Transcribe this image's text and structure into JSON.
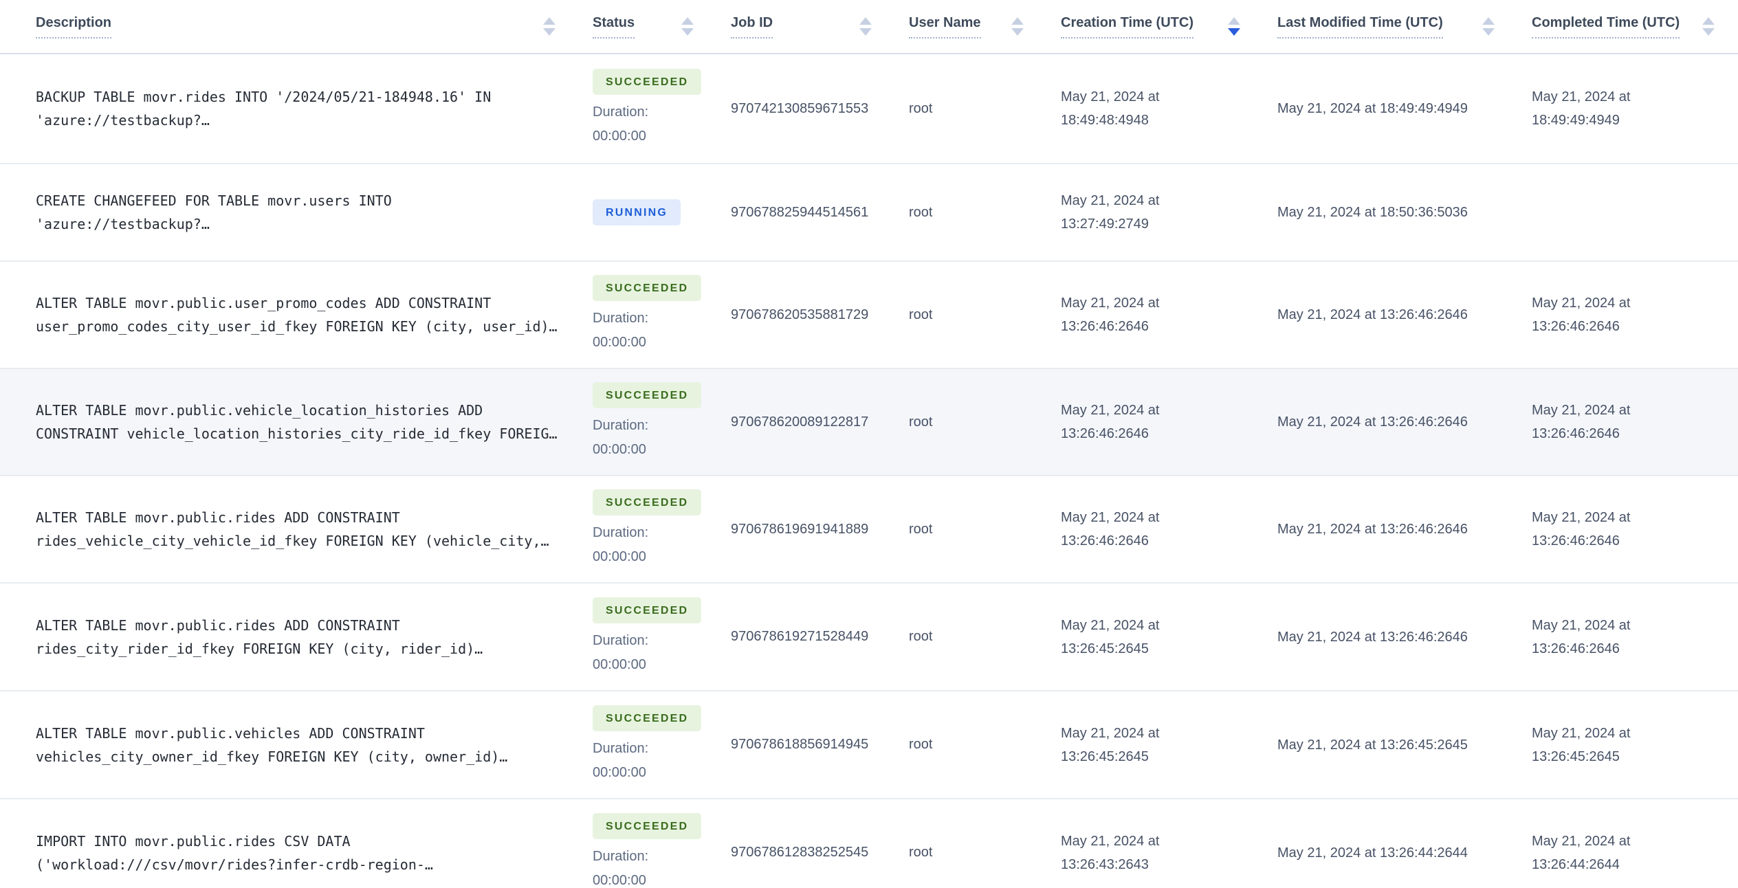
{
  "status_styles": {
    "SUCCEEDED": {
      "bg": "#e7f3df",
      "text": "#3a6c1d"
    },
    "RUNNING": {
      "bg": "#e1ebfc",
      "text": "#1e5ed7"
    }
  },
  "table": {
    "duration_label": "Duration:",
    "columns": [
      {
        "id": "description",
        "label": "Description",
        "sort": "none"
      },
      {
        "id": "status",
        "label": "Status",
        "sort": "none"
      },
      {
        "id": "job-id",
        "label": "Job ID",
        "sort": "none"
      },
      {
        "id": "user-name",
        "label": "User Name",
        "sort": "none"
      },
      {
        "id": "creation-time",
        "label": "Creation Time (UTC)",
        "sort": "desc"
      },
      {
        "id": "last-modified-time",
        "label": "Last Modified Time (UTC)",
        "sort": "none"
      },
      {
        "id": "completed-time",
        "label": "Completed Time (UTC)",
        "sort": "none"
      }
    ],
    "rows": [
      {
        "desc_lines": [
          "BACKUP TABLE movr.rides INTO '/2024/05/21-184948.16' IN",
          "'azure://testbackup?…"
        ],
        "status": "SUCCEEDED",
        "duration": "00:00:00",
        "job_id": "970742130859671553",
        "user": "root",
        "created_lines": [
          "May 21, 2024 at",
          "18:49:48:4948"
        ],
        "modified_lines": [
          "May 21, 2024 at 18:49:49:4949"
        ],
        "completed_lines": [
          "May 21, 2024 at",
          "18:49:49:4949"
        ],
        "highlighted": false
      },
      {
        "desc_lines": [
          "CREATE CHANGEFEED FOR TABLE movr.users INTO",
          "'azure://testbackup?…"
        ],
        "status": "RUNNING",
        "duration": null,
        "job_id": "970678825944514561",
        "user": "root",
        "created_lines": [
          "May 21, 2024 at",
          "13:27:49:2749"
        ],
        "modified_lines": [
          "May 21, 2024 at 18:50:36:5036"
        ],
        "completed_lines": [],
        "highlighted": false
      },
      {
        "desc_lines": [
          "ALTER TABLE movr.public.user_promo_codes ADD CONSTRAINT",
          "user_promo_codes_city_user_id_fkey FOREIGN KEY (city, user_id)…"
        ],
        "status": "SUCCEEDED",
        "duration": "00:00:00",
        "job_id": "970678620535881729",
        "user": "root",
        "created_lines": [
          "May 21, 2024 at",
          "13:26:46:2646"
        ],
        "modified_lines": [
          "May 21, 2024 at 13:26:46:2646"
        ],
        "completed_lines": [
          "May 21, 2024 at",
          "13:26:46:2646"
        ],
        "highlighted": false
      },
      {
        "desc_lines": [
          "ALTER TABLE movr.public.vehicle_location_histories ADD",
          "CONSTRAINT vehicle_location_histories_city_ride_id_fkey FOREIG…"
        ],
        "status": "SUCCEEDED",
        "duration": "00:00:00",
        "job_id": "970678620089122817",
        "user": "root",
        "created_lines": [
          "May 21, 2024 at",
          "13:26:46:2646"
        ],
        "modified_lines": [
          "May 21, 2024 at 13:26:46:2646"
        ],
        "completed_lines": [
          "May 21, 2024 at",
          "13:26:46:2646"
        ],
        "highlighted": true
      },
      {
        "desc_lines": [
          "ALTER TABLE movr.public.rides ADD CONSTRAINT",
          "rides_vehicle_city_vehicle_id_fkey FOREIGN KEY (vehicle_city,…"
        ],
        "status": "SUCCEEDED",
        "duration": "00:00:00",
        "job_id": "970678619691941889",
        "user": "root",
        "created_lines": [
          "May 21, 2024 at",
          "13:26:46:2646"
        ],
        "modified_lines": [
          "May 21, 2024 at 13:26:46:2646"
        ],
        "completed_lines": [
          "May 21, 2024 at",
          "13:26:46:2646"
        ],
        "highlighted": false
      },
      {
        "desc_lines": [
          "ALTER TABLE movr.public.rides ADD CONSTRAINT",
          "rides_city_rider_id_fkey FOREIGN KEY (city, rider_id)…"
        ],
        "status": "SUCCEEDED",
        "duration": "00:00:00",
        "job_id": "970678619271528449",
        "user": "root",
        "created_lines": [
          "May 21, 2024 at",
          "13:26:45:2645"
        ],
        "modified_lines": [
          "May 21, 2024 at 13:26:46:2646"
        ],
        "completed_lines": [
          "May 21, 2024 at",
          "13:26:46:2646"
        ],
        "highlighted": false
      },
      {
        "desc_lines": [
          "ALTER TABLE movr.public.vehicles ADD CONSTRAINT",
          "vehicles_city_owner_id_fkey FOREIGN KEY (city, owner_id)…"
        ],
        "status": "SUCCEEDED",
        "duration": "00:00:00",
        "job_id": "970678618856914945",
        "user": "root",
        "created_lines": [
          "May 21, 2024 at",
          "13:26:45:2645"
        ],
        "modified_lines": [
          "May 21, 2024 at 13:26:45:2645"
        ],
        "completed_lines": [
          "May 21, 2024 at",
          "13:26:45:2645"
        ],
        "highlighted": false
      },
      {
        "desc_lines": [
          "IMPORT INTO movr.public.rides CSV DATA",
          "('workload:///csv/movr/rides?infer-crdb-region-…"
        ],
        "status": "SUCCEEDED",
        "duration": "00:00:00",
        "job_id": "970678612838252545",
        "user": "root",
        "created_lines": [
          "May 21, 2024 at",
          "13:26:43:2643"
        ],
        "modified_lines": [
          "May 21, 2024 at 13:26:44:2644"
        ],
        "completed_lines": [
          "May 21, 2024 at",
          "13:26:44:2644"
        ],
        "highlighted": false
      }
    ]
  }
}
